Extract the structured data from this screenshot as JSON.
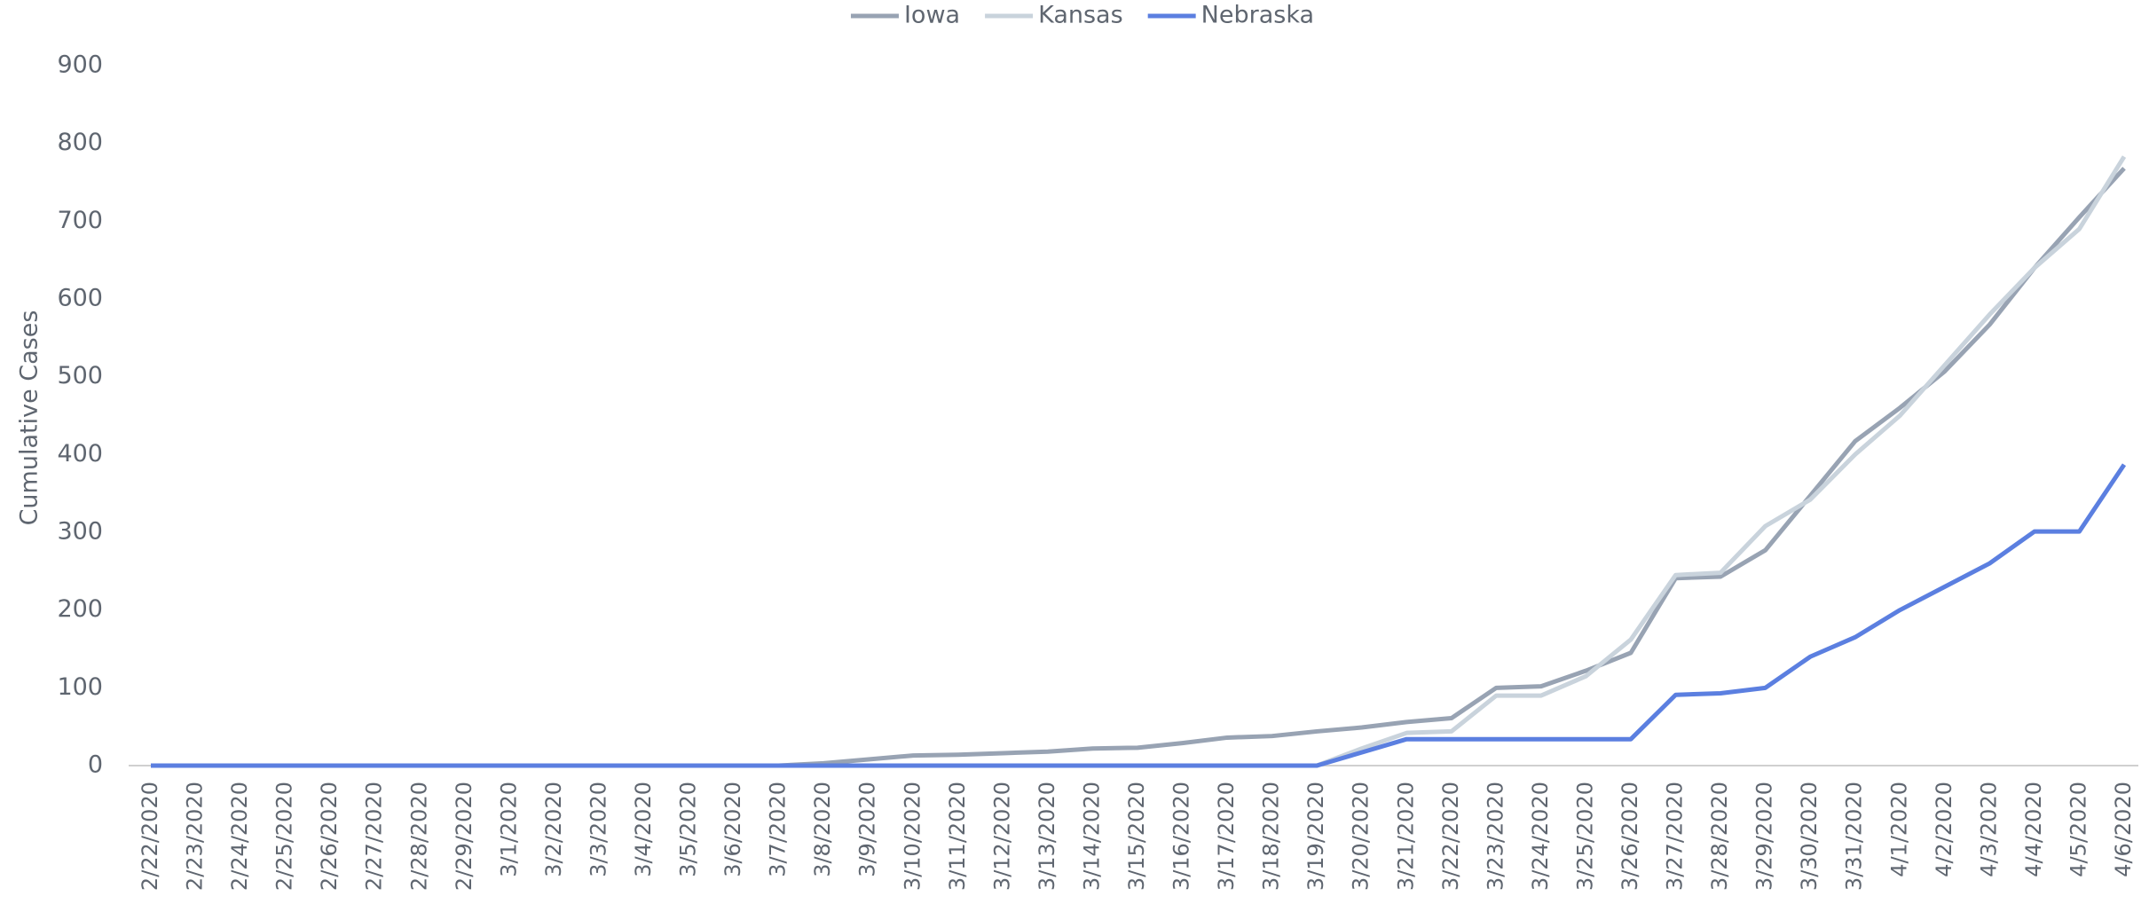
{
  "chart_data": {
    "type": "line",
    "y_label": "Cumulative Cases",
    "categories": [
      "2/22/2020",
      "2/23/2020",
      "2/24/2020",
      "2/25/2020",
      "2/26/2020",
      "2/27/2020",
      "2/28/2020",
      "2/29/2020",
      "3/1/2020",
      "3/2/2020",
      "3/3/2020",
      "3/4/2020",
      "3/5/2020",
      "3/6/2020",
      "3/7/2020",
      "3/8/2020",
      "3/9/2020",
      "3/10/2020",
      "3/11/2020",
      "3/12/2020",
      "3/13/2020",
      "3/14/2020",
      "3/15/2020",
      "3/16/2020",
      "3/17/2020",
      "3/18/2020",
      "3/19/2020",
      "3/20/2020",
      "3/21/2020",
      "3/22/2020",
      "3/23/2020",
      "3/24/2020",
      "3/25/2020",
      "3/26/2020",
      "3/27/2020",
      "3/28/2020",
      "3/29/2020",
      "3/30/2020",
      "3/31/2020",
      "4/1/2020",
      "4/2/2020",
      "4/3/2020",
      "4/4/2020",
      "4/5/2020",
      "4/6/2020"
    ],
    "series": [
      {
        "name": "Iowa",
        "color": "#98a3b3",
        "values": [
          0,
          0,
          0,
          0,
          0,
          0,
          0,
          0,
          0,
          0,
          0,
          0,
          0,
          0,
          0,
          3,
          8,
          13,
          14,
          16,
          18,
          22,
          23,
          29,
          36,
          38,
          44,
          49,
          56,
          61,
          100,
          102,
          122,
          145,
          241,
          243,
          277,
          347,
          417,
          460,
          507,
          567,
          640,
          705,
          768
        ]
      },
      {
        "name": "Kansas",
        "color": "#c9d3dc",
        "values": [
          0,
          0,
          0,
          0,
          0,
          0,
          0,
          0,
          0,
          0,
          0,
          0,
          0,
          0,
          0,
          0,
          0,
          0,
          0,
          0,
          0,
          0,
          0,
          0,
          0,
          0,
          0,
          22,
          42,
          44,
          90,
          90,
          115,
          162,
          245,
          248,
          308,
          342,
          400,
          450,
          515,
          580,
          640,
          690,
          783
        ]
      },
      {
        "name": "Nebraska",
        "color": "#5b7fe0",
        "values": [
          0,
          0,
          0,
          0,
          0,
          0,
          0,
          0,
          0,
          0,
          0,
          0,
          0,
          0,
          0,
          0,
          0,
          0,
          0,
          0,
          0,
          0,
          0,
          0,
          0,
          0,
          0,
          17,
          34,
          34,
          34,
          34,
          34,
          34,
          91,
          93,
          100,
          140,
          165,
          200,
          230,
          260,
          301,
          301,
          387
        ]
      }
    ],
    "ylim": [
      0,
      900
    ],
    "yticks": [
      0,
      100,
      200,
      300,
      400,
      500,
      600,
      700,
      800,
      900
    ],
    "grid": false,
    "legend": "top"
  }
}
